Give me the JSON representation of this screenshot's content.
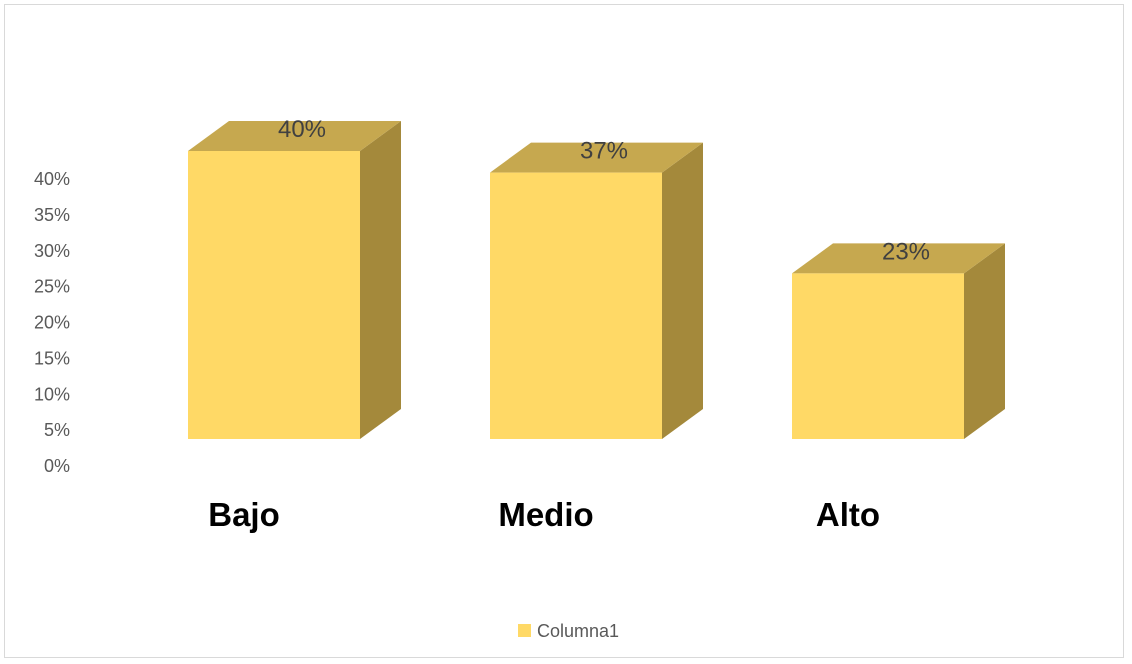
{
  "chart_data": {
    "type": "bar",
    "style": "3d-column",
    "categories": [
      "Bajo",
      "Medio",
      "Alto"
    ],
    "series": [
      {
        "name": "Columna1",
        "values": [
          40,
          37,
          23
        ],
        "color": "#ffd966"
      }
    ],
    "value_format": "percent",
    "data_labels": [
      "40%",
      "37%",
      "23%"
    ],
    "y_ticks": [
      "0%",
      "5%",
      "10%",
      "15%",
      "20%",
      "25%",
      "30%",
      "35%",
      "40%"
    ],
    "ylim": [
      0,
      40
    ],
    "grid": false,
    "legend_position": "bottom",
    "colors": {
      "front": "#ffd966",
      "top": "#c6a84f",
      "side": "#a4893b",
      "axis_text": "#595959"
    }
  }
}
